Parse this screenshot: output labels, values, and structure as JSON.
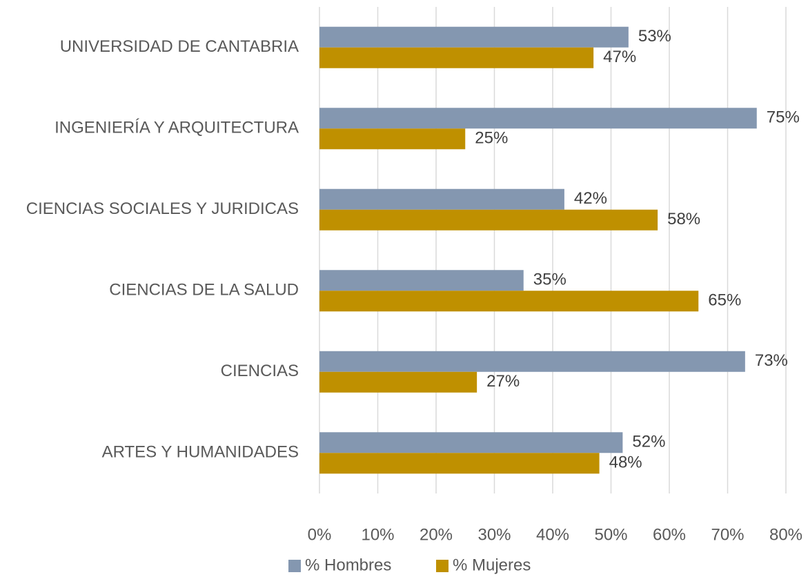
{
  "chart_data": {
    "type": "barh",
    "categories": [
      "UNIVERSIDAD DE CANTABRIA",
      "INGENIERÍA Y ARQUITECTURA",
      "CIENCIAS SOCIALES Y JURIDICAS",
      "CIENCIAS DE LA SALUD",
      "CIENCIAS",
      "ARTES Y HUMANIDADES"
    ],
    "series": [
      {
        "name": "% Hombres",
        "color": "#8497b0",
        "values": [
          53,
          75,
          42,
          35,
          73,
          52
        ],
        "value_labels": [
          "53%",
          "75%",
          "42%",
          "35%",
          "73%",
          "52%"
        ]
      },
      {
        "name": "% Mujeres",
        "color": "#bf9000",
        "values": [
          47,
          25,
          58,
          65,
          27,
          48
        ],
        "value_labels": [
          "47%",
          "25%",
          "58%",
          "65%",
          "27%",
          "48%"
        ]
      }
    ],
    "xlim": [
      0,
      80
    ],
    "xticks": [
      {
        "value": 0,
        "label": "0%"
      },
      {
        "value": 10,
        "label": "10%"
      },
      {
        "value": 20,
        "label": "20%"
      },
      {
        "value": 30,
        "label": "30%"
      },
      {
        "value": 40,
        "label": "40%"
      },
      {
        "value": 50,
        "label": "50%"
      },
      {
        "value": 60,
        "label": "60%"
      },
      {
        "value": 70,
        "label": "70%"
      },
      {
        "value": 80,
        "label": "80%"
      }
    ],
    "grid": true,
    "legend": "bottom"
  }
}
